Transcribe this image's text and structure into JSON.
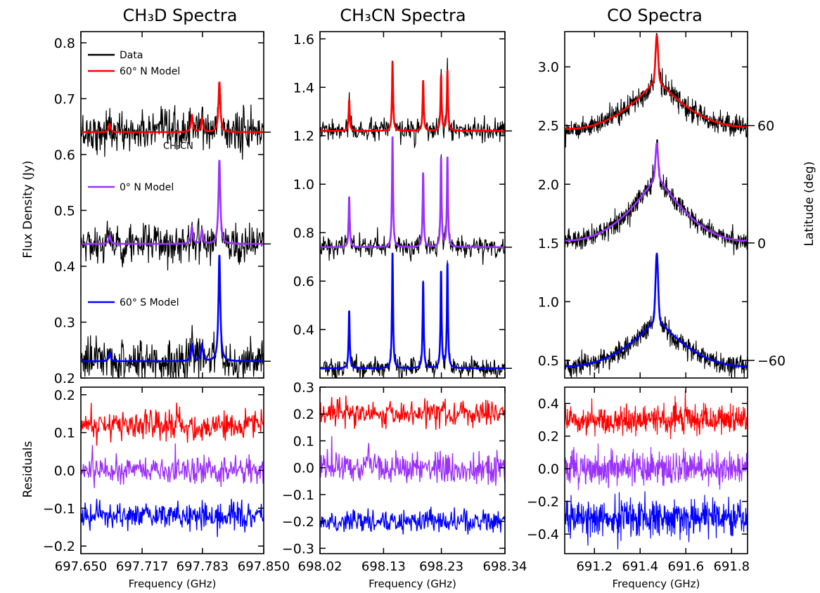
{
  "figure": {
    "ylabel_top": "Flux Density (Jy)",
    "ylabel_bottom": "Residuals",
    "ylabel_right": "Latitude (deg)",
    "xlabel": "Frequency (GHz)"
  },
  "colors": {
    "data": "#000000",
    "north": "#ff0000",
    "equator": "#9b30ff",
    "south": "#0000ff"
  },
  "legend": {
    "data_label": "Data",
    "north_label": "60° N Model",
    "equator_label": "0° N Model",
    "south_label": "60° S Model"
  },
  "annotations": {
    "ch3cn_label": "CH₃CN"
  },
  "chart_data": [
    {
      "type": "line",
      "title": "CH₃D Spectra",
      "xlabel": "Frequency (GHz)",
      "ylabel": "Flux Density (Jy)",
      "xlim": [
        697.65,
        697.85
      ],
      "ylim": [
        0.2,
        0.82
      ],
      "xticks": [
        "697.650",
        "697.717",
        "697.783",
        "697.850"
      ],
      "yticks": [
        "0.2",
        "0.3",
        "0.4",
        "0.5",
        "0.6",
        "0.7",
        "0.8"
      ],
      "series": [
        {
          "name": "60° N Model",
          "baseline": 0.64,
          "lines": [
            {
              "x": 697.8015,
              "y": 0.73
            },
            {
              "x": 697.7715,
              "y": 0.67
            },
            {
              "x": 697.7825,
              "y": 0.665
            },
            {
              "x": 697.6815,
              "y": 0.655
            }
          ]
        },
        {
          "name": "0° N Model",
          "baseline": 0.44,
          "lines": [
            {
              "x": 697.8015,
              "y": 0.59
            },
            {
              "x": 697.7715,
              "y": 0.47
            },
            {
              "x": 697.7825,
              "y": 0.465
            },
            {
              "x": 697.6815,
              "y": 0.455
            }
          ]
        },
        {
          "name": "60° S Model",
          "baseline": 0.23,
          "lines": [
            {
              "x": 697.8015,
              "y": 0.42
            },
            {
              "x": 697.7715,
              "y": 0.26
            },
            {
              "x": 697.7825,
              "y": 0.26
            },
            {
              "x": 697.6815,
              "y": 0.245
            }
          ]
        }
      ]
    },
    {
      "type": "line",
      "title": "CH₃CN Spectra",
      "xlabel": "Frequency (GHz)",
      "xlim": [
        698.02,
        698.34
      ],
      "ylim": [
        0.2,
        1.63
      ],
      "xticks": [
        "698.02",
        "698.13",
        "698.23",
        "698.34"
      ],
      "yticks": [
        "0.4",
        "0.6",
        "0.8",
        "1.0",
        "1.2",
        "1.4",
        "1.6"
      ],
      "series": [
        {
          "name": "60° N Model",
          "baseline": 1.22,
          "lines": [
            {
              "x": 698.0705,
              "y": 1.35
            },
            {
              "x": 698.1455,
              "y": 1.51
            },
            {
              "x": 698.1985,
              "y": 1.43
            },
            {
              "x": 698.2295,
              "y": 1.45
            },
            {
              "x": 698.2405,
              "y": 1.47
            }
          ]
        },
        {
          "name": "0° N Model",
          "baseline": 0.74,
          "lines": [
            {
              "x": 698.0705,
              "y": 0.95
            },
            {
              "x": 698.1455,
              "y": 1.2
            },
            {
              "x": 698.1985,
              "y": 1.05
            },
            {
              "x": 698.2295,
              "y": 1.11
            },
            {
              "x": 698.2405,
              "y": 1.11
            }
          ]
        },
        {
          "name": "60° S Model",
          "baseline": 0.24,
          "lines": [
            {
              "x": 698.0705,
              "y": 0.48
            },
            {
              "x": 698.1455,
              "y": 0.72
            },
            {
              "x": 698.1985,
              "y": 0.6
            },
            {
              "x": 698.2295,
              "y": 0.64
            },
            {
              "x": 698.2405,
              "y": 0.67
            }
          ]
        }
      ]
    },
    {
      "type": "line",
      "title": "CO Spectra",
      "xlabel": "Frequency (GHz)",
      "xlim": [
        691.07,
        691.87
      ],
      "ylim": [
        0.35,
        3.3
      ],
      "xticks": [
        "691.2",
        "691.4",
        "691.6",
        "691.8"
      ],
      "yticks": [
        "0.5",
        "1.0",
        "1.5",
        "2.0",
        "2.5",
        "3.0"
      ],
      "right_axis": {
        "label": "Latitude (deg)",
        "ticks": [
          {
            "label": "60",
            "y": 2.5
          },
          {
            "label": "0",
            "y": 1.5
          },
          {
            "label": "−60",
            "y": 0.5
          }
        ]
      },
      "series": [
        {
          "name": "60° N Model",
          "peak_x": 691.473,
          "peak": 3.27,
          "wing_center": 2.9,
          "edges": [
            2.47,
            2.49
          ]
        },
        {
          "name": "0° N Model",
          "peak_x": 691.473,
          "peak": 2.35,
          "wing_center": 2.08,
          "edges": [
            1.52,
            1.52
          ]
        },
        {
          "name": "60° S Model",
          "peak_x": 691.473,
          "peak": 1.41,
          "wing_center": 0.86,
          "edges": [
            0.45,
            0.45
          ]
        }
      ]
    },
    {
      "type": "line",
      "ylabel": "Residuals",
      "xlabel": "Frequency (GHz)",
      "xlim": [
        697.65,
        697.85
      ],
      "ylim": [
        -0.22,
        0.22
      ],
      "xticks": [
        "697.650",
        "697.717",
        "697.783",
        "697.850"
      ],
      "yticks": [
        "−0.2",
        "−0.1",
        "0.0",
        "0.1",
        "0.2"
      ],
      "series": [
        {
          "name": "60° N Model",
          "offset": 0.12,
          "scatter": 0.02
        },
        {
          "name": "0° N Model",
          "offset": 0.0,
          "scatter": 0.02
        },
        {
          "name": "60° S Model",
          "offset": -0.12,
          "scatter": 0.018
        }
      ]
    },
    {
      "type": "line",
      "xlabel": "Frequency (GHz)",
      "xlim": [
        698.02,
        698.34
      ],
      "ylim": [
        -0.32,
        0.3
      ],
      "xticks": [
        "698.02",
        "698.13",
        "698.23",
        "698.34"
      ],
      "yticks": [
        "−0.3",
        "−0.2",
        "−0.1",
        "0.0",
        "0.1",
        "0.2",
        "0.3"
      ],
      "series": [
        {
          "name": "60° N Model",
          "offset": 0.2,
          "scatter": 0.025
        },
        {
          "name": "0° N Model",
          "offset": 0.0,
          "scatter": 0.03
        },
        {
          "name": "60° S Model",
          "offset": -0.2,
          "scatter": 0.02
        }
      ]
    },
    {
      "type": "line",
      "xlabel": "Frequency (GHz)",
      "xlim": [
        691.07,
        691.87
      ],
      "ylim": [
        -0.52,
        0.5
      ],
      "xticks": [
        "691.2",
        "691.4",
        "691.6",
        "691.8"
      ],
      "yticks": [
        "−0.4",
        "−0.2",
        "0.0",
        "0.2",
        "0.4"
      ],
      "series": [
        {
          "name": "60° N Model",
          "offset": 0.3,
          "scatter": 0.045
        },
        {
          "name": "0° N Model",
          "offset": 0.0,
          "scatter": 0.05
        },
        {
          "name": "60° S Model",
          "offset": -0.3,
          "scatter": 0.055
        }
      ]
    }
  ]
}
